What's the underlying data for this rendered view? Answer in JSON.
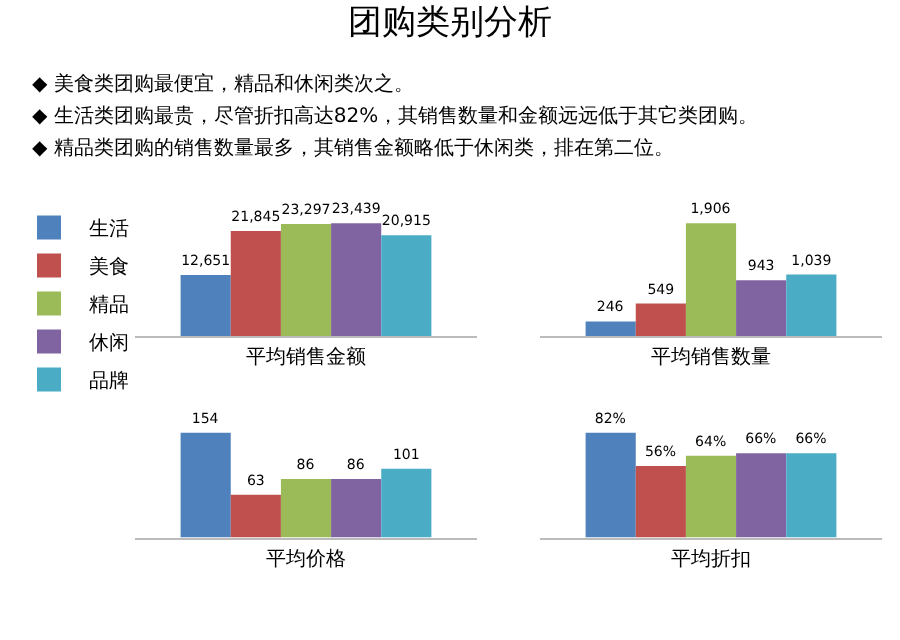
{
  "chart_data": [
    {
      "type": "bar",
      "title": "团购类别分析",
      "annotations": [
        "◆ 美食类团购最便宜，精品和休闲类次之。",
        "◆ 生活类团购最贵，尽管折扣高达82%，其销售数量和金额远远低于其它类团购。",
        "◆ 精品类团购的销售数量最多，其销售金额略低于休闲类，排在第二位。"
      ],
      "xlabel": "平均销售金额",
      "categories": [
        null
      ],
      "legend": "left",
      "series": [
        {
          "name": "生活",
          "color": "#4f81bd",
          "values": [
            12651
          ],
          "value_labels": [
            "12,651"
          ]
        },
        {
          "name": "美食",
          "color": "#c0504d",
          "values": [
            21845
          ],
          "value_labels": [
            "21,845"
          ]
        },
        {
          "name": "精品",
          "color": "#9bbb59",
          "values": [
            23297
          ],
          "value_labels": [
            "23,297"
          ]
        },
        {
          "name": "休闲",
          "color": "#8064a2",
          "values": [
            23439
          ],
          "value_labels": [
            "23,439"
          ]
        },
        {
          "name": "品牌",
          "color": "#4bacc6",
          "values": [
            20915
          ],
          "value_labels": [
            "20,915"
          ]
        }
      ]
    },
    {
      "type": "bar",
      "xlabel": "平均销售数量",
      "categories": [
        null
      ],
      "series": [
        {
          "color": "#4f81bd",
          "values": [
            246
          ],
          "value_labels": [
            "246"
          ]
        },
        {
          "color": "#c0504d",
          "values": [
            549
          ],
          "value_labels": [
            "549"
          ]
        },
        {
          "color": "#9bbb59",
          "values": [
            1906
          ],
          "value_labels": [
            "1,906"
          ]
        },
        {
          "color": "#8064a2",
          "values": [
            943
          ],
          "value_labels": [
            "943"
          ]
        },
        {
          "color": "#4bacc6",
          "values": [
            1039
          ],
          "value_labels": [
            "1,039"
          ]
        }
      ]
    },
    {
      "type": "bar",
      "xlabel": "平均价格",
      "categories": [
        null
      ],
      "series": [
        {
          "color": "#4f81bd",
          "values": [
            154
          ],
          "value_labels": [
            "154"
          ]
        },
        {
          "color": "#c0504d",
          "values": [
            63
          ],
          "value_labels": [
            "63"
          ]
        },
        {
          "color": "#9bbb59",
          "values": [
            86
          ],
          "value_labels": [
            "86"
          ]
        },
        {
          "color": "#8064a2",
          "values": [
            86
          ],
          "value_labels": [
            "86"
          ]
        },
        {
          "color": "#4bacc6",
          "values": [
            101
          ],
          "value_labels": [
            "101"
          ]
        }
      ]
    },
    {
      "type": "bar",
      "xlabel": "平均折扣",
      "categories": [
        null
      ],
      "series": [
        {
          "color": "#4f81bd",
          "values": [
            82
          ],
          "value_labels": [
            "82%"
          ]
        },
        {
          "color": "#c0504d",
          "values": [
            56
          ],
          "value_labels": [
            "56%"
          ]
        },
        {
          "color": "#9bbb59",
          "values": [
            64
          ],
          "value_labels": [
            "64%"
          ]
        },
        {
          "color": "#8064a2",
          "values": [
            66
          ],
          "value_labels": [
            "66%"
          ]
        },
        {
          "color": "#4bacc6",
          "values": [
            66
          ],
          "value_labels": [
            "66%"
          ]
        }
      ]
    }
  ]
}
